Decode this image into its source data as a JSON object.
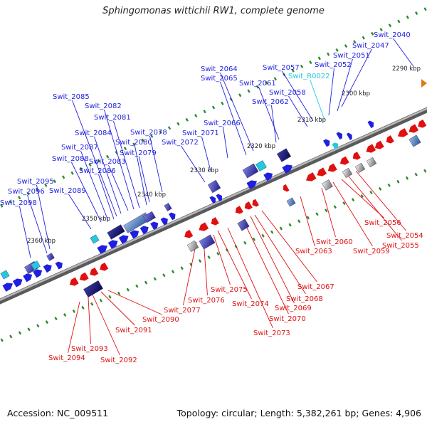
{
  "title": "Sphingomonas wittichii RW1, complete genome",
  "footer": {
    "accession": "Accession: NC_009511",
    "summary": "Topology: circular; Length: 5,382,261 bp; Genes: 4,906"
  },
  "colors": {
    "forward": "#1f1fe0",
    "reverse": "#e01010",
    "rna": "#22c8e0",
    "backbone": "#808080",
    "tick": "#2a8a2a",
    "extra_orange": "#e07a10"
  },
  "tick_labels": [
    "2290 kbp",
    "2300 kbp",
    "2310 kbp",
    "2320 kbp",
    "2330 kbp",
    "2340 kbp",
    "2350 kbp",
    "2360 kbp"
  ],
  "forward_genes": [
    "Swit_2040",
    "Swit_2047",
    "Swit_2051",
    "Swit_2052",
    "Swit_2057",
    "Swit_2058",
    "Swit_2061",
    "Swit_2062",
    "Swit_2064",
    "Swit_2065",
    "Swit_2066",
    "Swit_2071",
    "Swit_2072",
    "Swit_2078",
    "Swit_2079",
    "Swit_2080",
    "Swit_2081",
    "Swit_2082",
    "Swit_2083",
    "Swit_2084",
    "Swit_2085",
    "Swit_2086",
    "Swit_2087",
    "Swit_2088",
    "Swit_2089",
    "Swit_2095",
    "Swit_2096",
    "Swit_2098"
  ],
  "rna_genes": [
    "Swit_R0022"
  ],
  "reverse_genes": [
    "Swit_2054",
    "Swit_2055",
    "Swit_2056",
    "Swit_2059",
    "Swit_2060",
    "Swit_2063",
    "Swit_2067",
    "Swit_2068",
    "Swit_2069",
    "Swit_2070",
    "Swit_2073",
    "Swit_2074",
    "Swit_2075",
    "Swit_2076",
    "Swit_2077",
    "Swit_2090",
    "Swit_2091",
    "Swit_2092",
    "Swit_2093",
    "Swit_2094"
  ]
}
